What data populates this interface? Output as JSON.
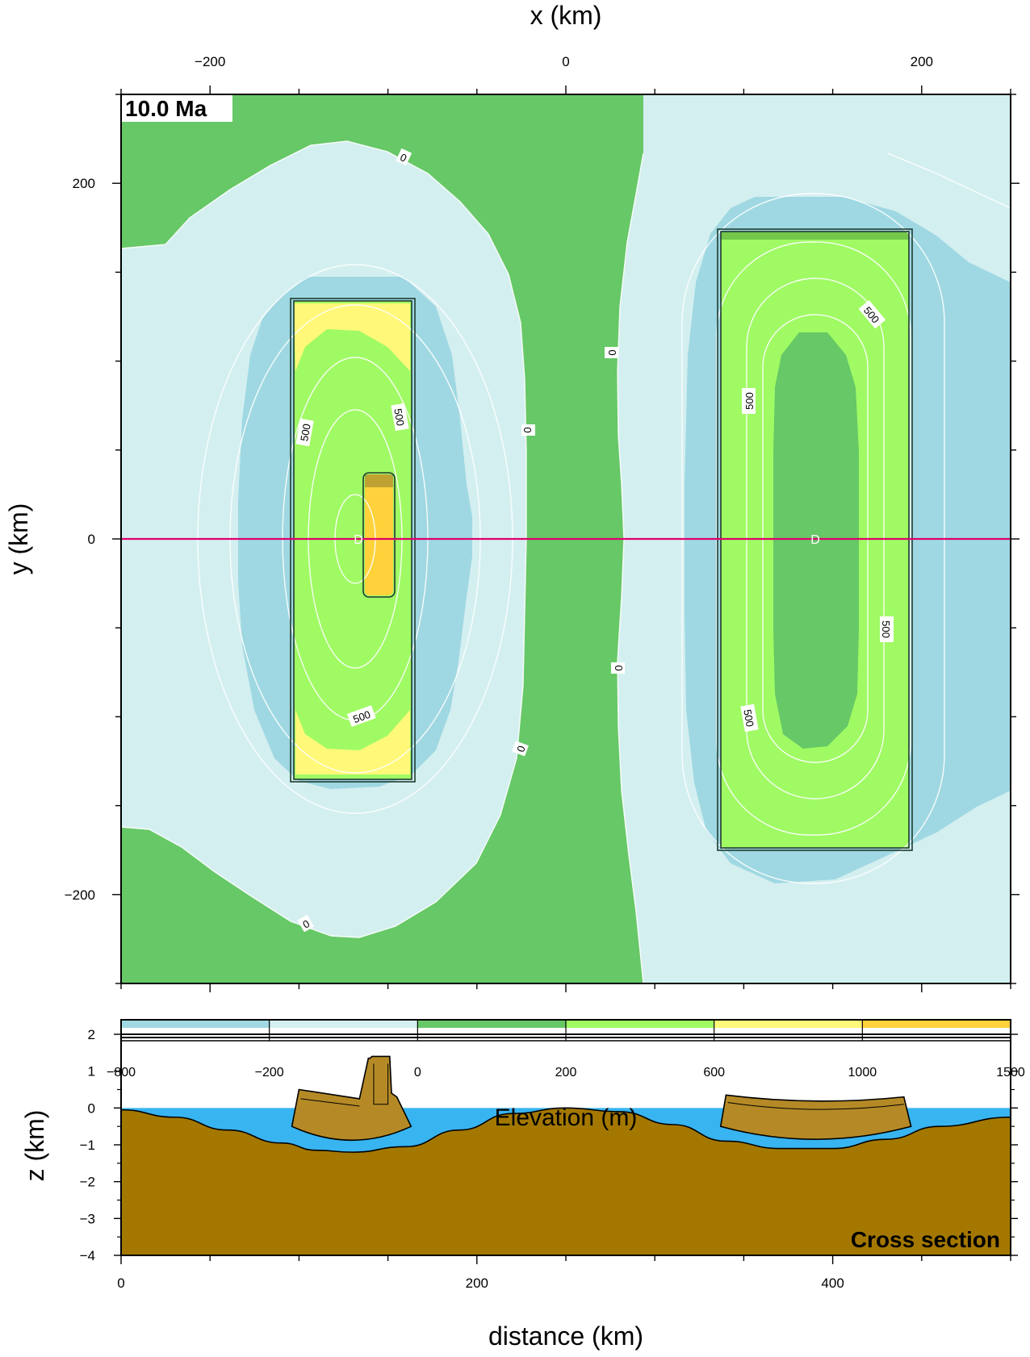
{
  "map": {
    "title_badge": "10.0 Ma",
    "x_axis": {
      "label": "x (km)",
      "ticks": [
        "-200",
        "0",
        "200"
      ],
      "ticks_values": [
        -200,
        0,
        200
      ],
      "range": [
        -250,
        250
      ]
    },
    "y_axis": {
      "label": "y (km)",
      "ticks": [
        "200",
        "0",
        "-200"
      ],
      "ticks_values": [
        200,
        0,
        -200
      ],
      "range": [
        -250,
        250
      ]
    },
    "contour_labels": [
      "0",
      "0",
      "0",
      "0",
      "0",
      "0",
      "500",
      "500",
      "500",
      "500",
      "500",
      "500",
      "500"
    ],
    "dome_markers": [
      "D",
      "D"
    ],
    "profile_line": {
      "y_km": 0,
      "color": "#e0006e"
    }
  },
  "colorbar": {
    "label": "Elevation (m)",
    "tick_labels": [
      "-800",
      "-200",
      "0",
      "200",
      "600",
      "1000",
      "1500"
    ],
    "colors": [
      "#9fd8e2",
      "#d4eff0",
      "#66c866",
      "#a0fa64",
      "#fff878",
      "#ffd23c"
    ]
  },
  "section": {
    "badge": "Cross section",
    "x_axis": {
      "label": "distance (km)",
      "ticks": [
        "0",
        "200",
        "400"
      ],
      "range": [
        0,
        500
      ]
    },
    "y_axis": {
      "label": "z (km)",
      "ticks": [
        "2",
        "1",
        "0",
        "−1",
        "−2",
        "−3",
        "−4"
      ],
      "range": [
        -4,
        2
      ]
    },
    "colors": {
      "water": "#38b4f0",
      "rock": "#a47800",
      "sediment": "#b58a26"
    }
  },
  "chart_data": [
    {
      "type": "heatmap",
      "title": "10.0 Ma",
      "xlabel": "x (km)",
      "ylabel": "y (km)",
      "xlim": [
        -250,
        250
      ],
      "ylim": [
        -250,
        250
      ],
      "variable": "Elevation (m)",
      "contour_levels_labeled": [
        0,
        500
      ],
      "features": [
        {
          "name": "western block",
          "x_range_km": [
            -153,
            -86
          ],
          "y_range_km": [
            -168,
            167
          ],
          "max_elevation_band_m": [
            600,
            1000
          ]
        },
        {
          "name": "western central ridge",
          "x_range_km": [
            -114,
            -98
          ],
          "y_range_km": [
            -33,
            36
          ],
          "max_elevation_band_m": [
            1000,
            1500
          ]
        },
        {
          "name": "eastern block",
          "x_range_km": [
            86,
            192
          ],
          "y_range_km": [
            -217,
            216
          ],
          "max_elevation_band_m": [
            200,
            600
          ]
        }
      ]
    },
    {
      "type": "area",
      "title": "Cross section",
      "xlabel": "distance (km)",
      "ylabel": "z (km)",
      "xlim": [
        0,
        500
      ],
      "ylim": [
        -4,
        2
      ],
      "series": [
        {
          "role": "basement",
          "x": [
            0,
            30,
            60,
            90,
            110,
            130,
            160,
            190,
            220,
            250,
            280,
            310,
            340,
            370,
            400,
            430,
            460,
            500
          ],
          "y": [
            -0.05,
            -0.25,
            -0.6,
            -0.95,
            -1.15,
            -1.2,
            -1.05,
            -0.6,
            -0.15,
            0.0,
            -0.1,
            -0.45,
            -0.9,
            -1.1,
            -1.1,
            -0.85,
            -0.5,
            -0.25
          ]
        },
        {
          "role": "blocks",
          "x": [
            96,
            100,
            134,
            139,
            140,
            141,
            151,
            152,
            155,
            163,
            337,
            340,
            440,
            444
          ],
          "y": [
            -0.5,
            0.5,
            0.25,
            1.35,
            1.35,
            1.4,
            1.4,
            0.4,
            0.3,
            -0.5,
            -0.5,
            0.35,
            0.3,
            -0.5
          ]
        }
      ]
    }
  ]
}
